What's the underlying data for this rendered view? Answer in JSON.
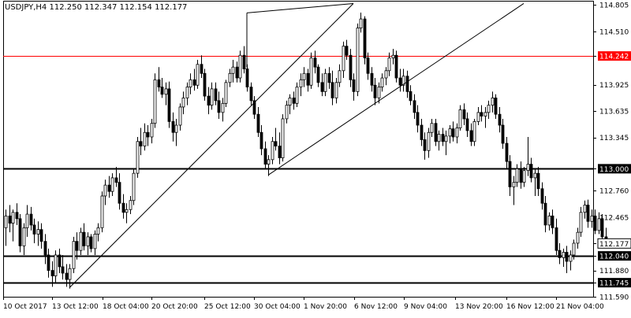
{
  "chart_data": {
    "type": "candlestick",
    "title": "USDJPY,H4  112.250 112.347 112.154 112.177",
    "symbol": "USDJPY",
    "timeframe": "H4",
    "ohlc_header": {
      "open": 112.25,
      "high": 112.347,
      "low": 112.154,
      "close": 112.177
    },
    "xlabel": "",
    "ylabel": "",
    "ylim": [
      111.59,
      114.85
    ],
    "y_ticks": [
      "114.805",
      "114.510",
      "114.242",
      "113.925",
      "113.635",
      "113.345",
      "113.000",
      "112.760",
      "112.465",
      "112.177",
      "112.040",
      "111.880",
      "111.745",
      "111.590"
    ],
    "x_tick_labels": [
      "10 Oct 2017",
      "13 Oct 12:00",
      "18 Oct 04:00",
      "20 Oct 20:00",
      "25 Oct 12:00",
      "30 Oct 04:00",
      "1 Nov 20:00",
      "6 Nov 12:00",
      "9 Nov 04:00",
      "13 Nov 20:00",
      "16 Nov 12:00",
      "21 Nov 04:00"
    ],
    "grid": false,
    "levels": [
      {
        "value": 114.242,
        "label": "114.242",
        "color": "#ff0000",
        "style": "thin"
      },
      {
        "value": 113.0,
        "label": "113.000",
        "color": "#000000",
        "style": "thick"
      },
      {
        "value": 112.04,
        "label": "112.040",
        "color": "#000000",
        "style": "thick"
      },
      {
        "value": 111.745,
        "label": "111.745",
        "color": "#000000",
        "style": "thick"
      }
    ],
    "current_price": {
      "value": 112.177,
      "label": "112.177"
    },
    "channel": {
      "points": [
        {
          "bar": 18,
          "price": 111.69
        },
        {
          "bar": 98,
          "price": 114.82
        },
        {
          "bar": 74,
          "price": 112.93
        },
        {
          "bar": 146,
          "price": 114.82
        }
      ]
    },
    "candles": [
      [
        112.35,
        112.55,
        112.15,
        112.48
      ],
      [
        112.48,
        112.6,
        112.3,
        112.4
      ],
      [
        112.4,
        112.55,
        112.2,
        112.52
      ],
      [
        112.52,
        112.62,
        112.38,
        112.45
      ],
      [
        112.45,
        112.5,
        112.08,
        112.15
      ],
      [
        112.15,
        112.4,
        112.05,
        112.35
      ],
      [
        112.35,
        112.6,
        112.25,
        112.5
      ],
      [
        112.5,
        112.58,
        112.32,
        112.38
      ],
      [
        112.38,
        112.45,
        112.18,
        112.28
      ],
      [
        112.28,
        112.42,
        112.15,
        112.33
      ],
      [
        112.33,
        112.4,
        112.12,
        112.2
      ],
      [
        112.2,
        112.28,
        111.95,
        112.05
      ],
      [
        112.05,
        112.12,
        111.8,
        111.88
      ],
      [
        111.88,
        111.98,
        111.7,
        111.82
      ],
      [
        111.82,
        112.1,
        111.75,
        112.05
      ],
      [
        112.05,
        112.12,
        111.85,
        111.92
      ],
      [
        111.92,
        112.05,
        111.78,
        111.85
      ],
      [
        111.85,
        111.95,
        111.7,
        111.78
      ],
      [
        111.78,
        111.95,
        111.68,
        111.9
      ],
      [
        111.9,
        112.25,
        111.85,
        112.2
      ],
      [
        112.2,
        112.3,
        112.0,
        112.1
      ],
      [
        112.1,
        112.35,
        112.05,
        112.3
      ],
      [
        112.3,
        112.4,
        112.1,
        112.15
      ],
      [
        112.15,
        112.3,
        112.05,
        112.25
      ],
      [
        112.25,
        112.28,
        112.08,
        112.12
      ],
      [
        112.12,
        112.32,
        112.05,
        112.28
      ],
      [
        112.28,
        112.4,
        112.2,
        112.35
      ],
      [
        112.35,
        112.75,
        112.3,
        112.7
      ],
      [
        112.7,
        112.88,
        112.6,
        112.82
      ],
      [
        112.82,
        112.92,
        112.68,
        112.75
      ],
      [
        112.75,
        112.95,
        112.7,
        112.9
      ],
      [
        112.9,
        113.02,
        112.8,
        112.85
      ],
      [
        112.85,
        112.95,
        112.55,
        112.62
      ],
      [
        112.62,
        112.72,
        112.45,
        112.52
      ],
      [
        112.52,
        112.62,
        112.4,
        112.55
      ],
      [
        112.55,
        112.7,
        112.5,
        112.65
      ],
      [
        112.65,
        113.0,
        112.6,
        112.95
      ],
      [
        112.95,
        113.35,
        112.9,
        113.3
      ],
      [
        113.3,
        113.45,
        113.15,
        113.25
      ],
      [
        113.25,
        113.5,
        113.2,
        113.4
      ],
      [
        113.4,
        113.48,
        113.25,
        113.35
      ],
      [
        113.35,
        113.55,
        113.28,
        113.5
      ],
      [
        113.5,
        114.05,
        113.45,
        113.98
      ],
      [
        113.98,
        114.12,
        113.85,
        113.9
      ],
      [
        113.9,
        114.0,
        113.78,
        113.82
      ],
      [
        113.82,
        113.95,
        113.7,
        113.88
      ],
      [
        113.88,
        113.96,
        113.45,
        113.52
      ],
      [
        113.52,
        113.62,
        113.3,
        113.4
      ],
      [
        113.4,
        113.55,
        113.25,
        113.48
      ],
      [
        113.48,
        113.72,
        113.42,
        113.68
      ],
      [
        113.68,
        113.85,
        113.6,
        113.78
      ],
      [
        113.78,
        113.95,
        113.7,
        113.9
      ],
      [
        113.9,
        114.05,
        113.82,
        113.98
      ],
      [
        113.98,
        114.1,
        113.86,
        113.92
      ],
      [
        113.92,
        114.2,
        113.88,
        114.15
      ],
      [
        114.15,
        114.25,
        114.0,
        114.05
      ],
      [
        114.05,
        114.1,
        113.75,
        113.8
      ],
      [
        113.8,
        113.9,
        113.6,
        113.7
      ],
      [
        113.7,
        113.95,
        113.65,
        113.88
      ],
      [
        113.88,
        113.95,
        113.7,
        113.75
      ],
      [
        113.75,
        113.85,
        113.55,
        113.62
      ],
      [
        113.62,
        113.78,
        113.52,
        113.72
      ],
      [
        113.72,
        113.98,
        113.68,
        113.95
      ],
      [
        113.95,
        114.1,
        113.9,
        114.05
      ],
      [
        114.05,
        114.2,
        113.95,
        114.12
      ],
      [
        114.12,
        114.18,
        113.95,
        114.0
      ],
      [
        114.0,
        114.3,
        113.95,
        114.25
      ],
      [
        114.25,
        114.35,
        114.05,
        114.1
      ],
      [
        114.1,
        114.15,
        113.85,
        113.9
      ],
      [
        113.9,
        113.95,
        113.7,
        113.75
      ],
      [
        113.75,
        113.8,
        113.55,
        113.6
      ],
      [
        113.6,
        113.68,
        113.35,
        113.4
      ],
      [
        113.4,
        113.48,
        113.15,
        113.22
      ],
      [
        113.22,
        113.3,
        113.0,
        113.05
      ],
      [
        113.05,
        113.15,
        112.92,
        113.1
      ],
      [
        113.1,
        113.35,
        113.05,
        113.3
      ],
      [
        113.3,
        113.45,
        113.2,
        113.25
      ],
      [
        113.25,
        113.4,
        113.05,
        113.12
      ],
      [
        113.12,
        113.6,
        113.08,
        113.55
      ],
      [
        113.55,
        113.75,
        113.5,
        113.7
      ],
      [
        113.7,
        113.82,
        113.6,
        113.78
      ],
      [
        113.78,
        113.85,
        113.65,
        113.72
      ],
      [
        113.72,
        113.95,
        113.68,
        113.9
      ],
      [
        113.9,
        114.05,
        113.8,
        113.98
      ],
      [
        113.98,
        114.12,
        113.9,
        114.05
      ],
      [
        114.05,
        114.1,
        113.85,
        113.92
      ],
      [
        113.92,
        114.28,
        113.88,
        114.22
      ],
      [
        114.22,
        114.3,
        114.05,
        114.12
      ],
      [
        114.12,
        114.15,
        113.9,
        113.95
      ],
      [
        113.95,
        114.05,
        113.8,
        113.85
      ],
      [
        113.85,
        114.1,
        113.8,
        114.05
      ],
      [
        114.05,
        114.12,
        113.88,
        113.95
      ],
      [
        113.95,
        114.08,
        113.7,
        113.78
      ],
      [
        113.78,
        114.0,
        113.72,
        113.95
      ],
      [
        113.95,
        114.15,
        113.9,
        114.08
      ],
      [
        114.08,
        114.4,
        114.0,
        114.35
      ],
      [
        114.35,
        114.42,
        114.2,
        114.25
      ],
      [
        114.25,
        114.32,
        113.9,
        113.98
      ],
      [
        113.98,
        114.05,
        113.75,
        113.85
      ],
      [
        113.85,
        114.6,
        113.8,
        114.55
      ],
      [
        114.55,
        114.72,
        114.5,
        114.65
      ],
      [
        114.65,
        114.68,
        114.15,
        114.22
      ],
      [
        114.22,
        114.28,
        113.98,
        114.05
      ],
      [
        114.05,
        114.12,
        113.85,
        113.92
      ],
      [
        113.92,
        114.0,
        113.7,
        113.78
      ],
      [
        113.78,
        113.95,
        113.72,
        113.9
      ],
      [
        113.9,
        114.05,
        113.85,
        114.0
      ],
      [
        114.0,
        114.12,
        113.92,
        114.08
      ],
      [
        114.08,
        114.28,
        114.02,
        114.22
      ],
      [
        114.22,
        114.32,
        114.15,
        114.25
      ],
      [
        114.25,
        114.3,
        113.95,
        114.0
      ],
      [
        114.0,
        114.1,
        113.85,
        113.92
      ],
      [
        113.92,
        114.1,
        113.85,
        114.02
      ],
      [
        114.02,
        114.08,
        113.78,
        113.85
      ],
      [
        113.85,
        113.92,
        113.7,
        113.75
      ],
      [
        113.75,
        113.82,
        113.55,
        113.62
      ],
      [
        113.62,
        113.7,
        113.4,
        113.48
      ],
      [
        113.48,
        113.55,
        113.25,
        113.32
      ],
      [
        113.32,
        113.4,
        113.1,
        113.2
      ],
      [
        113.2,
        113.45,
        113.12,
        113.4
      ],
      [
        113.4,
        113.55,
        113.35,
        113.5
      ],
      [
        113.5,
        113.55,
        113.25,
        113.3
      ],
      [
        113.3,
        113.42,
        113.2,
        113.38
      ],
      [
        113.38,
        113.45,
        113.25,
        113.3
      ],
      [
        113.3,
        113.42,
        113.15,
        113.36
      ],
      [
        113.36,
        113.48,
        113.28,
        113.44
      ],
      [
        113.44,
        113.52,
        113.3,
        113.35
      ],
      [
        113.35,
        113.5,
        113.28,
        113.45
      ],
      [
        113.45,
        113.7,
        113.42,
        113.65
      ],
      [
        113.65,
        113.72,
        113.48,
        113.55
      ],
      [
        113.55,
        113.62,
        113.35,
        113.42
      ],
      [
        113.42,
        113.5,
        113.25,
        113.3
      ],
      [
        113.3,
        113.55,
        113.25,
        113.52
      ],
      [
        113.52,
        113.68,
        113.48,
        113.62
      ],
      [
        113.62,
        113.7,
        113.52,
        113.58
      ],
      [
        113.58,
        113.68,
        113.45,
        113.62
      ],
      [
        113.62,
        113.75,
        113.55,
        113.7
      ],
      [
        113.7,
        113.85,
        113.62,
        113.78
      ],
      [
        113.78,
        113.82,
        113.55,
        113.6
      ],
      [
        113.6,
        113.68,
        113.4,
        113.48
      ],
      [
        113.48,
        113.55,
        113.22,
        113.28
      ],
      [
        113.28,
        113.35,
        113.0,
        113.08
      ],
      [
        113.08,
        113.15,
        112.7,
        112.8
      ],
      [
        112.8,
        112.92,
        112.6,
        112.85
      ],
      [
        112.85,
        113.05,
        112.8,
        113.0
      ],
      [
        113.0,
        113.08,
        112.78,
        112.85
      ],
      [
        112.85,
        113.02,
        112.8,
        112.98
      ],
      [
        112.98,
        113.35,
        112.92,
        113.05
      ],
      [
        113.05,
        113.12,
        112.85,
        112.9
      ],
      [
        112.9,
        113.0,
        112.7,
        112.95
      ],
      [
        112.95,
        113.02,
        112.7,
        112.78
      ],
      [
        112.78,
        112.85,
        112.55,
        112.62
      ],
      [
        112.62,
        112.7,
        112.3,
        112.38
      ],
      [
        112.38,
        112.52,
        112.32,
        112.48
      ],
      [
        112.48,
        112.55,
        112.28,
        112.35
      ],
      [
        112.35,
        112.45,
        112.05,
        112.1
      ],
      [
        112.1,
        112.18,
        111.95,
        112.02
      ],
      [
        112.02,
        112.12,
        111.92,
        112.08
      ],
      [
        112.08,
        112.15,
        111.85,
        111.98
      ],
      [
        111.98,
        112.1,
        111.88,
        112.05
      ],
      [
        112.05,
        112.22,
        112.0,
        112.18
      ],
      [
        112.18,
        112.35,
        112.12,
        112.3
      ],
      [
        112.3,
        112.58,
        112.25,
        112.52
      ],
      [
        112.52,
        112.65,
        112.45,
        112.6
      ],
      [
        112.6,
        112.66,
        112.35,
        112.42
      ],
      [
        112.42,
        112.55,
        112.35,
        112.48
      ],
      [
        112.48,
        112.55,
        112.28,
        112.32
      ],
      [
        112.32,
        112.52,
        112.28,
        112.45
      ],
      [
        112.45,
        112.5,
        112.2,
        112.25
      ],
      [
        112.25,
        112.35,
        112.15,
        112.18
      ]
    ]
  }
}
